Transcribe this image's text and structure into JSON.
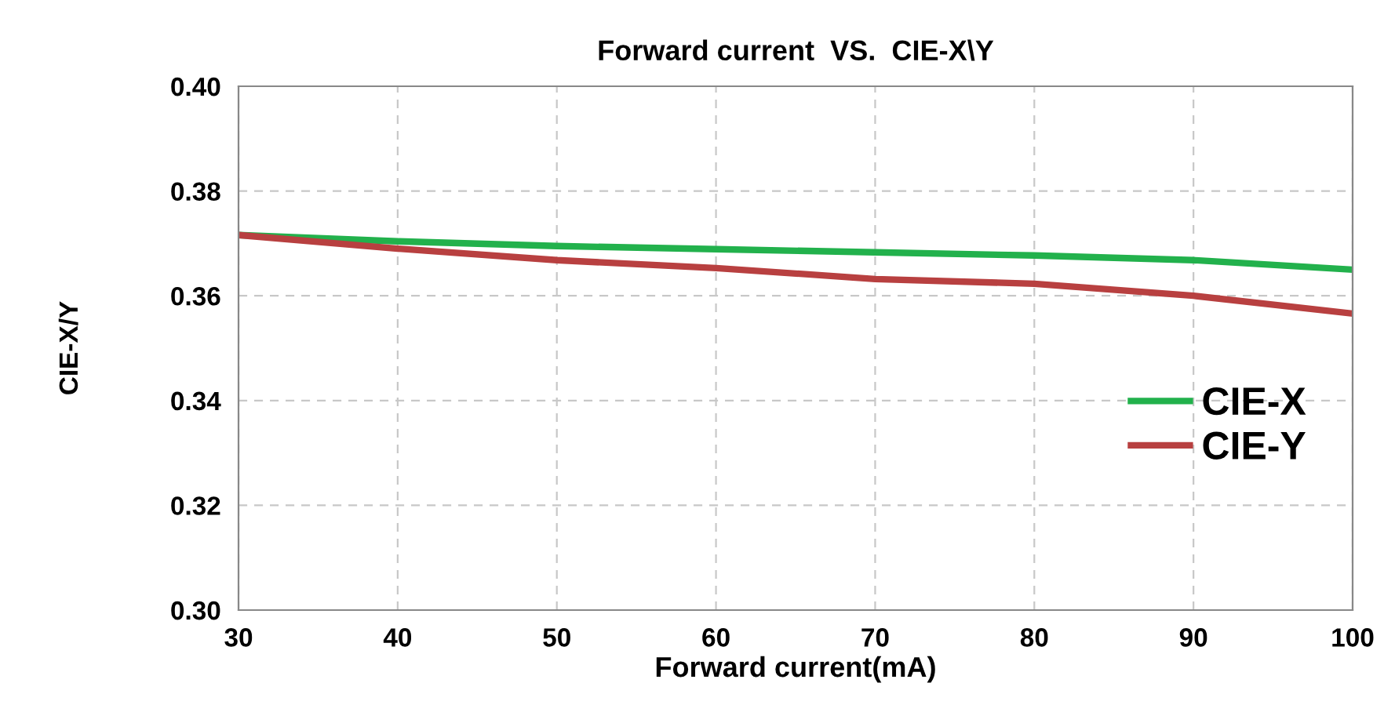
{
  "chart_data": {
    "type": "line",
    "title": "Forward current  VS.  CIE-X\\Y",
    "xlabel": "Forward current(mA)",
    "ylabel": "CIE-X/Y",
    "x": [
      30,
      40,
      50,
      60,
      70,
      80,
      90,
      100
    ],
    "series": [
      {
        "name": "CIE-X",
        "color": "#22b14c",
        "values": [
          0.3716,
          0.3704,
          0.3695,
          0.3689,
          0.3683,
          0.3677,
          0.3668,
          0.365
        ]
      },
      {
        "name": "CIE-Y",
        "color": "#b84040",
        "values": [
          0.3716,
          0.369,
          0.3668,
          0.3653,
          0.3632,
          0.3623,
          0.36,
          0.3566
        ]
      }
    ],
    "xlim": [
      30,
      100
    ],
    "xticks": [
      30,
      40,
      50,
      60,
      70,
      80,
      90,
      100
    ],
    "ylim": [
      0.3,
      0.4
    ],
    "yticks": [
      {
        "value": 0.3,
        "label": "0.30"
      },
      {
        "value": 0.32,
        "label": "0.32"
      },
      {
        "value": 0.34,
        "label": "0.34"
      },
      {
        "value": 0.36,
        "label": "0.36"
      },
      {
        "value": 0.38,
        "label": "0.38"
      },
      {
        "value": 0.4,
        "label": "0.40"
      }
    ],
    "grid": true,
    "legend": "right",
    "marker": "none",
    "line_style": "solid"
  }
}
